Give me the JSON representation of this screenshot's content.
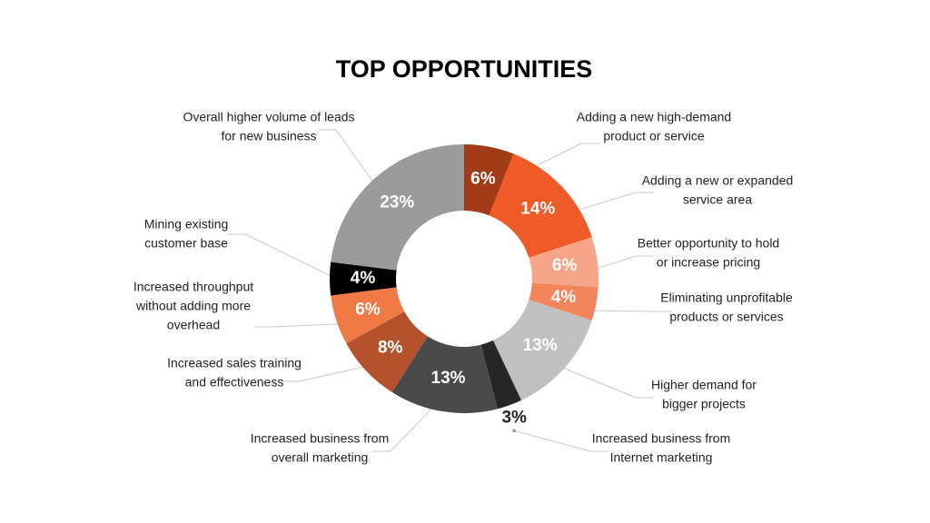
{
  "chart_data": {
    "type": "donut",
    "title": "TOP OPPORTUNITIES",
    "categories": [
      [
        "Adding a new high-demand",
        "product or service"
      ],
      [
        "Adding a new or expanded",
        "service area"
      ],
      [
        "Better opportunity to hold",
        "or increase pricing"
      ],
      [
        "Eliminating unprofitable",
        "products or services"
      ],
      [
        "Higher demand for",
        "bigger projects"
      ],
      [
        "Increased business from",
        "Internet marketing"
      ],
      [
        "Increased business from",
        "overall marketing"
      ],
      [
        "Increased sales training",
        "and effectiveness"
      ],
      [
        "Increased throughput",
        "without adding more",
        "overhead"
      ],
      [
        "Mining existing",
        "customer base"
      ],
      [
        "Overall higher volume of leads",
        "for new business"
      ]
    ],
    "values": [
      6,
      14,
      6,
      4,
      13,
      3,
      13,
      8,
      6,
      4,
      23
    ],
    "value_labels": [
      "6%",
      "14%",
      "6%",
      "4%",
      "13%",
      "3%",
      "13%",
      "8%",
      "6%",
      "4%",
      "23%"
    ],
    "colors": [
      "#a43b18",
      "#f05a28",
      "#f7a589",
      "#f4855a",
      "#c0c0c0",
      "#262626",
      "#4a4a4a",
      "#b4522d",
      "#f07a45",
      "#000000",
      "#9b9b9b"
    ]
  }
}
